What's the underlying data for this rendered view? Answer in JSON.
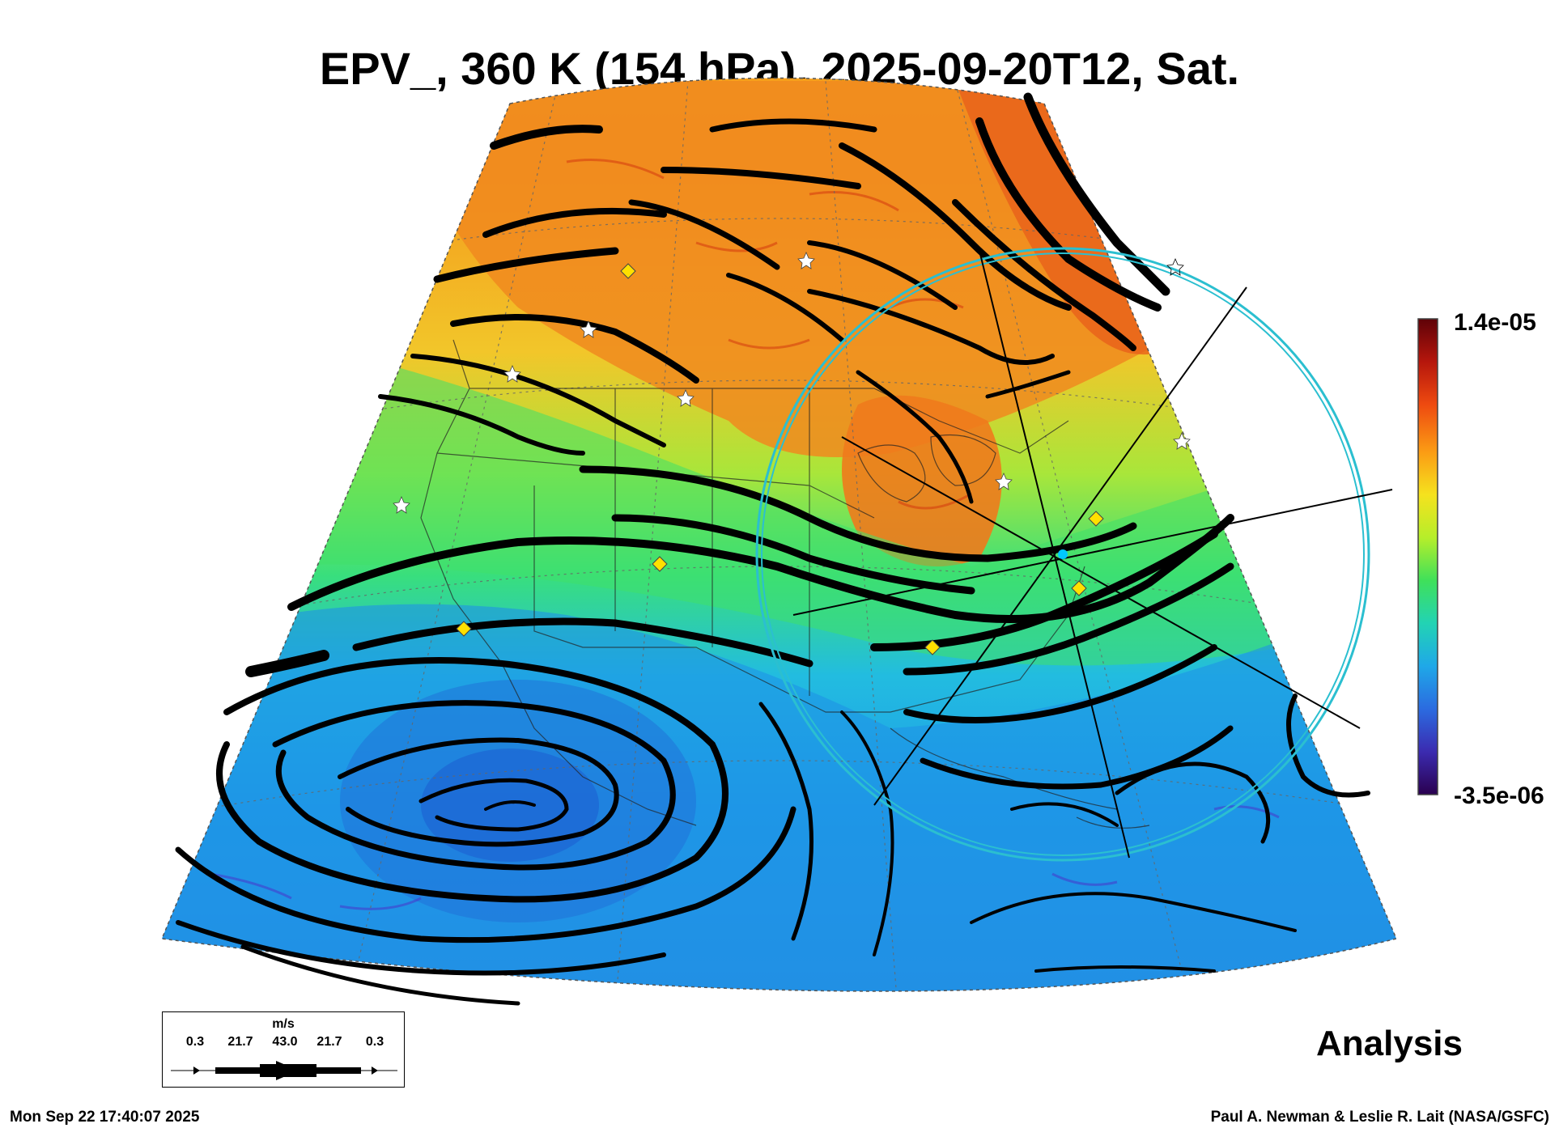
{
  "title": "EPV_, 360 K (154 hPa), 2025-09-20T12, Sat.",
  "colorbar": {
    "max_label": "1.4e-05",
    "min_label": "-3.5e-06",
    "colors": [
      "#2a004f",
      "#3b2bb0",
      "#2b6be0",
      "#1fa8e8",
      "#22d3b4",
      "#3fe05a",
      "#b6ee2a",
      "#f5e21e",
      "#fb9c14",
      "#ee4a10",
      "#b5160c",
      "#5e0208"
    ]
  },
  "wind_legend": {
    "units": "m/s",
    "values": [
      "0.3",
      "21.7",
      "43.0",
      "21.7",
      "0.3"
    ]
  },
  "label_analysis": "Analysis",
  "timestamp": "Mon Sep 22 17:40:07 2025",
  "credit": "Paul A. Newman & Leslie R. Lait (NASA/GSFC)",
  "markers": {
    "star_color": "#ffffff",
    "diamond_color": "#ffe000",
    "center_color": "#00c8ff",
    "range_ring_color": "#2bbfd0"
  }
}
